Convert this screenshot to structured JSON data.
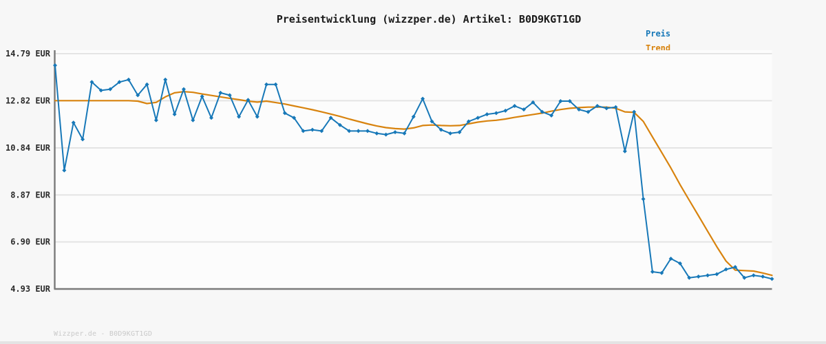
{
  "title": "Preisentwicklung (wizzper.de) Artikel: B0D9KGT1GD",
  "legend": [
    {
      "label": "Preis",
      "color": "#1778b8"
    },
    {
      "label": "Trend",
      "color": "#d8830e"
    }
  ],
  "footer": "Wizzper.de - B0D9KGT1GD",
  "colors": {
    "price_line": "#1778b8",
    "trend_line": "#d8830e",
    "grid": "#e4e4e4",
    "axis": "#7a7a7a",
    "page_bg": "#f7f7f7",
    "plot_bg": "#fcfcfc",
    "title_text": "#1b1b1b",
    "tick_text": "#2a2a2a",
    "footer_text": "#c9c9c9",
    "footer_band": "#e4e4e4"
  },
  "chart_data": {
    "type": "line",
    "title": "Preisentwicklung (wizzper.de) Artikel: B0D9KGT1GD",
    "currency": "EUR",
    "ylim": [
      4.93,
      14.79
    ],
    "yticks": [
      {
        "value": 14.79,
        "label": "14.79 EUR"
      },
      {
        "value": 12.82,
        "label": "12.82 EUR"
      },
      {
        "value": 10.84,
        "label": "10.84 EUR"
      },
      {
        "value": 8.87,
        "label": "8.87 EUR"
      },
      {
        "value": 6.9,
        "label": "6.90 EUR"
      },
      {
        "value": 4.93,
        "label": "4.93 EUR"
      }
    ],
    "x_axis": {
      "tick_labels_visible": false,
      "n_points": 79
    },
    "grid": "horizontal",
    "legend_position": "top-right",
    "series": [
      {
        "name": "Preis",
        "color": "#1778b8",
        "markers": "diamond",
        "values": [
          14.3,
          9.9,
          11.9,
          11.2,
          13.6,
          13.25,
          13.3,
          13.6,
          13.7,
          13.05,
          13.5,
          12.0,
          13.7,
          12.25,
          13.3,
          12.0,
          13.0,
          12.1,
          13.15,
          13.05,
          12.15,
          12.85,
          12.15,
          13.5,
          13.5,
          12.3,
          12.1,
          11.55,
          11.6,
          11.55,
          12.1,
          11.8,
          11.55,
          11.55,
          11.55,
          11.45,
          11.4,
          11.5,
          11.45,
          12.15,
          12.9,
          11.95,
          11.6,
          11.45,
          11.5,
          11.95,
          12.1,
          12.25,
          12.3,
          12.4,
          12.6,
          12.45,
          12.75,
          12.35,
          12.2,
          12.8,
          12.8,
          12.45,
          12.35,
          12.6,
          12.5,
          12.55,
          10.7,
          12.35,
          8.7,
          5.65,
          5.6,
          6.2,
          6.0,
          5.4,
          5.45,
          5.5,
          5.55,
          5.75,
          5.85,
          5.4,
          5.5,
          5.45,
          5.35
        ]
      },
      {
        "name": "Trend",
        "color": "#d8830e",
        "markers": "none",
        "values": [
          12.82,
          12.82,
          12.82,
          12.82,
          12.82,
          12.82,
          12.82,
          12.82,
          12.82,
          12.8,
          12.7,
          12.75,
          12.98,
          13.15,
          13.2,
          13.17,
          13.1,
          13.04,
          12.98,
          12.92,
          12.86,
          12.8,
          12.76,
          12.8,
          12.74,
          12.68,
          12.6,
          12.52,
          12.44,
          12.35,
          12.26,
          12.16,
          12.05,
          11.95,
          11.85,
          11.76,
          11.69,
          11.65,
          11.63,
          11.68,
          11.78,
          11.8,
          11.78,
          11.77,
          11.78,
          11.85,
          11.92,
          11.97,
          12.0,
          12.05,
          12.12,
          12.18,
          12.24,
          12.3,
          12.38,
          12.45,
          12.5,
          12.53,
          12.55,
          12.55,
          12.55,
          12.5,
          12.35,
          12.33,
          11.95,
          11.3,
          10.65,
          10.0,
          9.3,
          8.65,
          8.0,
          7.35,
          6.7,
          6.1,
          5.72,
          5.7,
          5.68,
          5.6,
          5.5
        ]
      }
    ]
  }
}
